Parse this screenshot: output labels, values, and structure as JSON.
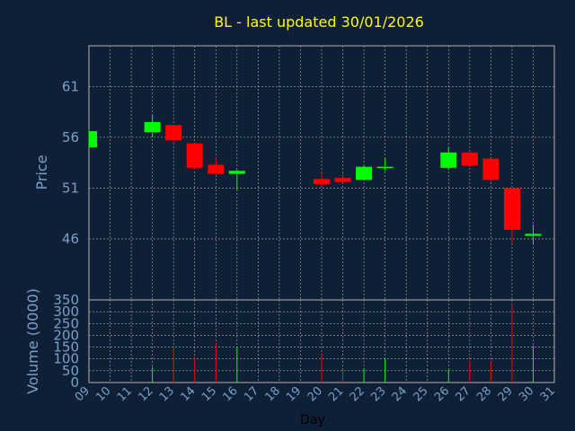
{
  "chart_data": {
    "type": "candlestick",
    "title": "BL - last updated 30/01/2026",
    "price_panel": {
      "ylabel": "Price",
      "ylim": [
        40,
        65
      ],
      "yticks": [
        46,
        51,
        56,
        61
      ],
      "grid": true
    },
    "volume_panel": {
      "ylabel": "Volume (0000)",
      "ylim": [
        0,
        350
      ],
      "yticks": [
        0,
        50,
        100,
        150,
        200,
        250,
        300,
        350
      ],
      "grid": true
    },
    "xlabel": "Day",
    "x_ticks": [
      "09",
      "10",
      "11",
      "12",
      "13",
      "14",
      "15",
      "16",
      "17",
      "18",
      "19",
      "20",
      "21",
      "22",
      "23",
      "24",
      "25",
      "26",
      "27",
      "28",
      "29",
      "30",
      "31"
    ],
    "colors": {
      "background": "#0f1f35",
      "up": "#00ff00",
      "down": "#ff0000",
      "axis_text": "#7aa0c8",
      "title": "#ffff00",
      "grid": "#b0b0b0"
    },
    "candles": [
      {
        "day": 9,
        "open": 55.0,
        "high": 56.8,
        "low": 55.0,
        "close": 56.6,
        "volume": 0
      },
      {
        "day": 12,
        "open": 56.5,
        "high": 58.2,
        "low": 56.0,
        "close": 57.5,
        "volume": 65
      },
      {
        "day": 13,
        "open": 57.2,
        "high": 57.2,
        "low": 55.5,
        "close": 55.7,
        "volume": 155
      },
      {
        "day": 14,
        "open": 55.4,
        "high": 55.4,
        "low": 52.8,
        "close": 53.0,
        "volume": 110
      },
      {
        "day": 15,
        "open": 53.3,
        "high": 54.0,
        "low": 52.3,
        "close": 52.4,
        "volume": 165
      },
      {
        "day": 16,
        "open": 52.4,
        "high": 52.8,
        "low": 50.8,
        "close": 52.7,
        "volume": 150
      },
      {
        "day": 20,
        "open": 51.9,
        "high": 52.6,
        "low": 51.2,
        "close": 51.4,
        "volume": 120
      },
      {
        "day": 21,
        "open": 52.0,
        "high": 52.4,
        "low": 51.5,
        "close": 51.6,
        "volume": 55
      },
      {
        "day": 22,
        "open": 51.8,
        "high": 53.2,
        "low": 51.8,
        "close": 53.1,
        "volume": 60
      },
      {
        "day": 23,
        "open": 53.0,
        "high": 53.9,
        "low": 52.7,
        "close": 53.1,
        "volume": 100
      },
      {
        "day": 26,
        "open": 53.0,
        "high": 55.0,
        "low": 52.8,
        "close": 54.5,
        "volume": 55
      },
      {
        "day": 27,
        "open": 54.5,
        "high": 54.6,
        "low": 53.1,
        "close": 53.2,
        "volume": 95
      },
      {
        "day": 28,
        "open": 53.9,
        "high": 53.9,
        "low": 51.6,
        "close": 51.8,
        "volume": 90
      },
      {
        "day": 29,
        "open": 51.0,
        "high": 51.0,
        "low": 45.5,
        "close": 46.9,
        "volume": 330
      },
      {
        "day": 30,
        "open": 46.3,
        "high": 47.4,
        "low": 45.5,
        "close": 46.5,
        "volume": 155
      }
    ]
  }
}
